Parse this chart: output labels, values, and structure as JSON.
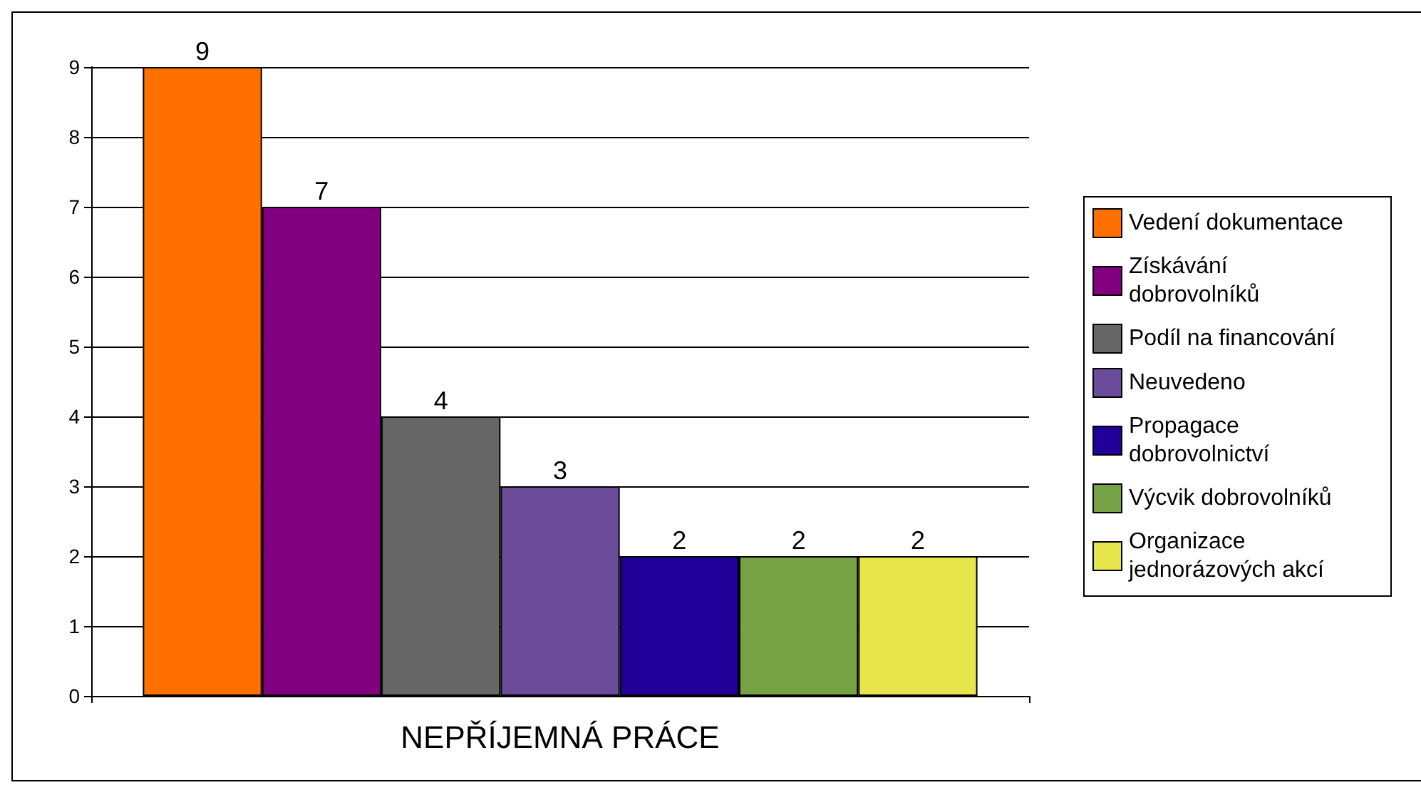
{
  "chart_data": {
    "type": "bar",
    "categories": [
      "NEPŘÍJEMNÁ PRÁCE"
    ],
    "series": [
      {
        "name": "Vedení dokumentace",
        "color": "#ff7000",
        "values": [
          9
        ]
      },
      {
        "name": "Získávání dobrovolníků",
        "color": "#800080",
        "values": [
          7
        ]
      },
      {
        "name": "Podíl na financování",
        "color": "#666666",
        "values": [
          4
        ]
      },
      {
        "name": "Neuvedeno",
        "color": "#6b4c9a",
        "values": [
          3
        ]
      },
      {
        "name": "Propagace dobrovolnictví",
        "color": "#200098",
        "values": [
          2
        ]
      },
      {
        "name": "Výcvik dobrovolníků",
        "color": "#77a345",
        "values": [
          2
        ]
      },
      {
        "name": "Organizace jednorázových akcí",
        "color": "#e6e64c",
        "values": [
          2
        ]
      }
    ],
    "ylim": [
      0,
      9
    ],
    "yticks": [
      0,
      1,
      2,
      3,
      4,
      5,
      6,
      7,
      8,
      9
    ],
    "grid": "y",
    "legend": "right",
    "data_labels": true
  }
}
